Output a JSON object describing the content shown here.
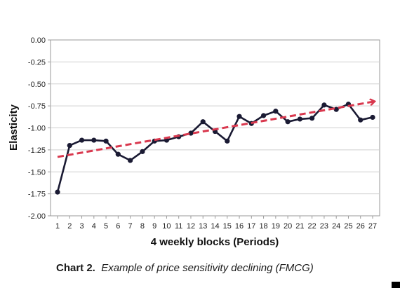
{
  "chart_data": {
    "type": "line",
    "title": "",
    "xlabel": "4 weekly blocks (Periods)",
    "ylabel": "Elasticity",
    "categories": [
      "1",
      "2",
      "3",
      "4",
      "5",
      "6",
      "7",
      "8",
      "9",
      "10",
      "11",
      "12",
      "13",
      "14",
      "15",
      "16",
      "17",
      "18",
      "19",
      "20",
      "21",
      "22",
      "23",
      "24",
      "25",
      "26",
      "27"
    ],
    "y_ticks": [
      "0.00",
      "-0.25",
      "-0.50",
      "-0.75",
      "-1.00",
      "-1.25",
      "-1.50",
      "-1.75",
      "-2.00"
    ],
    "ylim": [
      -2.0,
      0.0
    ],
    "grid": "horizontal",
    "series": [
      {
        "values": [
          -1.73,
          -1.2,
          -1.14,
          -1.14,
          -1.15,
          -1.3,
          -1.37,
          -1.27,
          -1.15,
          -1.14,
          -1.1,
          -1.06,
          -0.93,
          -1.04,
          -1.15,
          -0.87,
          -0.95,
          -0.86,
          -0.81,
          -0.93,
          -0.9,
          -0.89,
          -0.74,
          -0.79,
          -0.73,
          -0.91,
          -0.88
        ],
        "color": "#1a1a33"
      }
    ],
    "trend": {
      "type": "linear",
      "from": -1.33,
      "to": -0.7,
      "color": "#d9384e"
    }
  },
  "caption": {
    "label": "Chart 2.",
    "text": "Example of price sensitivity declining (FMCG)"
  }
}
